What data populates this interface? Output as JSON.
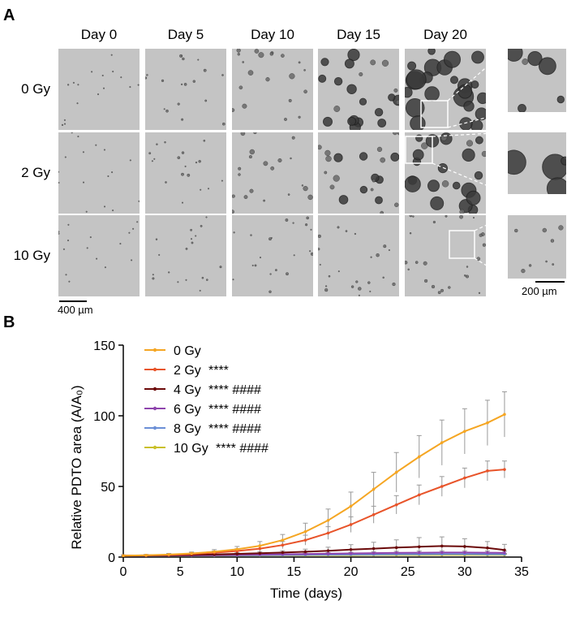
{
  "panel_a": {
    "letter": "A",
    "columns": [
      "Day 0",
      "Day 5",
      "Day 10",
      "Day 15",
      "Day 20"
    ],
    "rows": [
      "0 Gy",
      "2 Gy",
      "10 Gy"
    ],
    "scale_main": "400 µm",
    "scale_inset": "200 µm"
  },
  "panel_b": {
    "letter": "B"
  },
  "chart_data": {
    "type": "line",
    "title": "",
    "xlabel": "Time (days)",
    "ylabel": "Relative PDTO area (A/A₀)",
    "xlim": [
      0,
      35
    ],
    "ylim": [
      0,
      150
    ],
    "xticks": [
      0,
      5,
      10,
      15,
      20,
      25,
      30,
      35
    ],
    "yticks": [
      0,
      50,
      100,
      150
    ],
    "legend_position": "top-left",
    "x": [
      0,
      2,
      4,
      6,
      8,
      10,
      12,
      14,
      16,
      18,
      20,
      22,
      24,
      26,
      28,
      30,
      32,
      33.5
    ],
    "series": [
      {
        "name": "0 Gy",
        "color": "#f5a623",
        "stats": "",
        "values": [
          1,
          1.3,
          1.8,
          2.6,
          3.8,
          5.5,
          8,
          12,
          18,
          26,
          36,
          48,
          60,
          71,
          81,
          89,
          95,
          101
        ],
        "errors": [
          0.5,
          0.6,
          0.8,
          1,
          1.5,
          2,
          3,
          4,
          6,
          8,
          10,
          12,
          14,
          15,
          16,
          16,
          16,
          16
        ]
      },
      {
        "name": "2 Gy",
        "color": "#e8542a",
        "stats": "****",
        "values": [
          1,
          1.2,
          1.6,
          2.2,
          3.1,
          4.3,
          6,
          8.5,
          12,
          17,
          23,
          30,
          37,
          44,
          50,
          56,
          61,
          62
        ],
        "errors": [
          0.5,
          0.5,
          0.7,
          0.9,
          1.2,
          1.6,
          2,
          2.5,
          3.5,
          4.5,
          5.5,
          6,
          6.5,
          7,
          7,
          7,
          7,
          6
        ]
      },
      {
        "name": "4 Gy",
        "color": "#6b0a0a",
        "stats": "**** ####",
        "values": [
          1,
          1.1,
          1.3,
          1.6,
          1.9,
          2.3,
          2.7,
          3.2,
          3.8,
          4.5,
          5.3,
          6,
          6.7,
          7.3,
          7.8,
          7.5,
          6.5,
          5
        ],
        "errors": [
          0.3,
          0.3,
          0.4,
          0.5,
          0.6,
          0.8,
          1,
          1.3,
          1.8,
          2.5,
          3.5,
          4.5,
          5.5,
          6.5,
          6.5,
          5.5,
          4.5,
          4
        ]
      },
      {
        "name": "6 Gy",
        "color": "#8e44ad",
        "stats": "**** ####",
        "values": [
          1,
          1,
          1.1,
          1.2,
          1.4,
          1.6,
          1.8,
          2,
          2.2,
          2.4,
          2.6,
          2.8,
          3,
          3.1,
          3.2,
          3.2,
          3.1,
          3
        ],
        "errors": [
          0.2,
          0.2,
          0.2,
          0.3,
          0.3,
          0.4,
          0.5,
          0.6,
          0.7,
          0.8,
          0.9,
          1,
          1.1,
          1.2,
          1.2,
          1.2,
          1.2,
          1.2
        ]
      },
      {
        "name": "8 Gy",
        "color": "#6b8fd6",
        "stats": "**** ####",
        "values": [
          1,
          1,
          1.1,
          1.1,
          1.2,
          1.3,
          1.4,
          1.5,
          1.6,
          1.7,
          1.8,
          1.9,
          2,
          2,
          2.1,
          2.1,
          2,
          2
        ],
        "errors": [
          0.2,
          0.2,
          0.2,
          0.2,
          0.3,
          0.3,
          0.3,
          0.4,
          0.4,
          0.5,
          0.5,
          0.6,
          0.6,
          0.6,
          0.6,
          0.6,
          0.6,
          0.6
        ]
      },
      {
        "name": "10 Gy",
        "color": "#c9c02a",
        "stats": "**** ####",
        "values": [
          1,
          1,
          1,
          1.1,
          1.1,
          1.2,
          1.2,
          1.3,
          1.3,
          1.4,
          1.4,
          1.5,
          1.5,
          1.5,
          1.6,
          1.6,
          1.6,
          1.6
        ],
        "errors": [
          0.1,
          0.1,
          0.1,
          0.2,
          0.2,
          0.2,
          0.2,
          0.3,
          0.3,
          0.3,
          0.3,
          0.3,
          0.4,
          0.4,
          0.4,
          0.4,
          0.4,
          0.4
        ]
      }
    ]
  }
}
